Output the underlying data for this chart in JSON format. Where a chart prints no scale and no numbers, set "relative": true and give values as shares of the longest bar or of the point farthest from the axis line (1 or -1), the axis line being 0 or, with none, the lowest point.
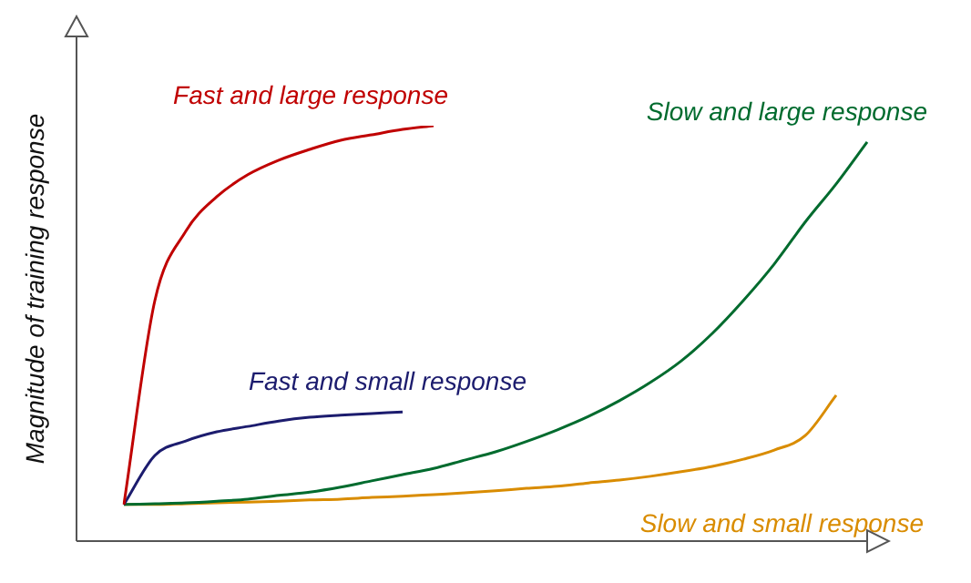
{
  "chart_data": {
    "type": "line",
    "ylabel": "Magnitude of training response",
    "relative": true,
    "legend": false,
    "marker": "none",
    "line_style": "solid",
    "tick_labels": false,
    "categories": [
      null,
      null,
      null,
      null,
      null,
      null,
      null,
      null,
      null,
      null,
      null,
      null,
      null,
      null,
      null,
      null,
      null,
      null,
      null,
      null,
      null,
      null,
      null,
      null,
      null
    ],
    "series": [
      {
        "name": "Fast and large response",
        "color": "#c00000",
        "values": [
          0.088,
          0.579,
          0.746,
          0.829,
          0.882,
          0.917,
          0.943,
          0.965,
          0.978,
          0.991,
          1,
          null,
          null,
          null,
          null,
          null,
          null,
          null,
          null,
          null,
          null,
          null,
          null,
          null,
          null
        ]
      },
      {
        "name": "Fast and small response",
        "color": "#1c1c6e",
        "values": [
          0.088,
          0.206,
          0.241,
          0.263,
          0.276,
          0.289,
          0.298,
          0.303,
          0.307,
          0.311,
          null,
          null,
          null,
          null,
          null,
          null,
          null,
          null,
          null,
          null,
          null,
          null,
          null,
          null,
          null
        ]
      },
      {
        "name": "Slow and large response",
        "color": "#006b2e",
        "values": [
          0.088,
          0.09,
          0.092,
          0.096,
          0.101,
          0.11,
          0.118,
          0.13,
          0.145,
          0.16,
          0.175,
          0.195,
          0.215,
          0.24,
          0.268,
          0.3,
          0.338,
          0.382,
          0.434,
          0.5,
          0.579,
          0.667,
          0.768,
          0.86,
          0.961
        ]
      },
      {
        "name": "Slow and small response",
        "color": "#d98c00",
        "values": [
          0.088,
          0.088,
          0.09,
          0.092,
          0.094,
          0.096,
          0.099,
          0.101,
          0.105,
          0.108,
          0.112,
          0.116,
          0.121,
          0.127,
          0.132,
          0.14,
          0.147,
          0.156,
          0.167,
          0.18,
          0.197,
          0.219,
          0.254,
          0.351,
          null
        ]
      }
    ]
  }
}
